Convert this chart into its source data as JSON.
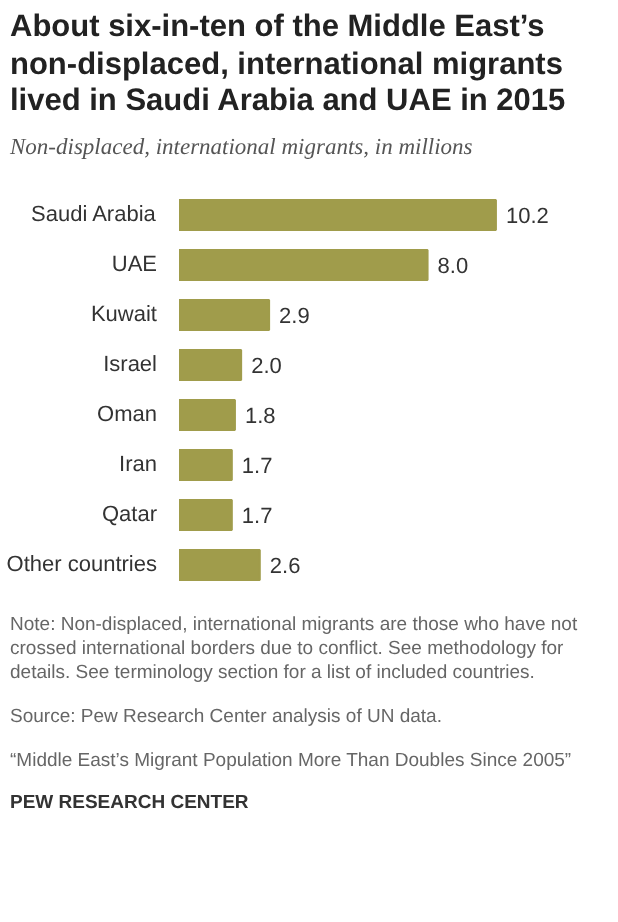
{
  "chart_data": {
    "type": "bar",
    "orientation": "horizontal",
    "title": "About six-in-ten of the Middle East’s non-displaced, international migrants lived in Saudi Arabia and UAE in 2015",
    "subtitle": "Non-displaced, international migrants, in millions",
    "categories": [
      "Saudi Arabia",
      "UAE",
      "Kuwait",
      "Israel",
      "Oman",
      "Iran",
      "Qatar",
      "Other countries"
    ],
    "values": [
      10.2,
      8.0,
      2.9,
      2.0,
      1.8,
      1.7,
      1.7,
      2.6
    ],
    "value_labels": [
      "10.2",
      "8.0",
      "2.9",
      "2.0",
      "1.8",
      "1.7",
      "1.7",
      "2.6"
    ],
    "color": "#a09c4b",
    "grid": false,
    "tick_labels": "y",
    "annotations": [
      "Note: Non-displaced, international migrants are those who have not crossed international borders due to conflict. See methodology for details. See terminology section for a list of included countries.",
      "Source: Pew Research Center analysis of UN data.",
      "“Middle East’s Migrant Population More Than Doubles Since 2005”",
      "PEW RESEARCH CENTER"
    ]
  }
}
